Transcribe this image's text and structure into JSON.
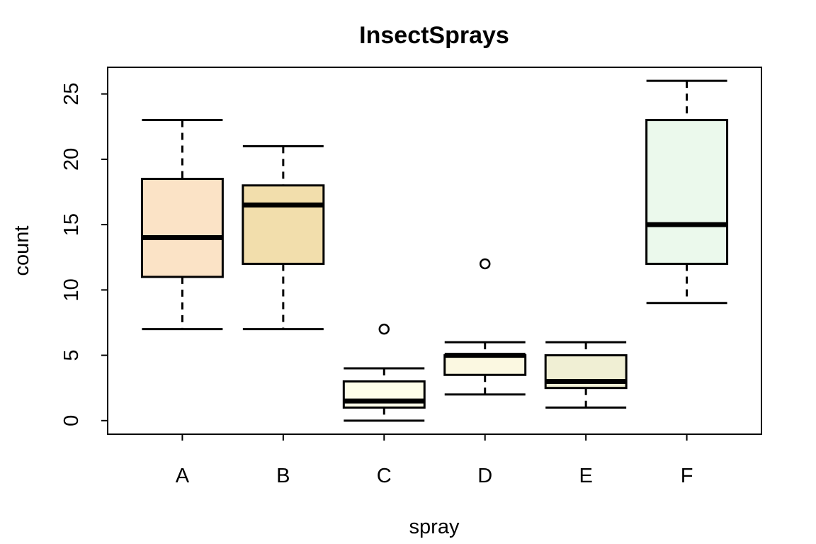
{
  "chart_data": {
    "type": "boxplot",
    "title": "InsectSprays",
    "xlabel": "spray",
    "ylabel": "count",
    "categories": [
      "A",
      "B",
      "C",
      "D",
      "E",
      "F"
    ],
    "ylim": [
      0,
      26
    ],
    "y_ticks": [
      0,
      5,
      10,
      15,
      20,
      25
    ],
    "grid": false,
    "legend": "none",
    "series": [
      {
        "name": "A",
        "whisker_low": 7,
        "q1": 11,
        "median": 14,
        "q3": 18.5,
        "whisker_high": 23,
        "outliers": [],
        "fill": "#FBE3C6"
      },
      {
        "name": "B",
        "whisker_low": 7,
        "q1": 12,
        "median": 16.5,
        "q3": 18,
        "whisker_high": 21,
        "outliers": [],
        "fill": "#F2DEAC"
      },
      {
        "name": "C",
        "whisker_low": 0,
        "q1": 1,
        "median": 1.5,
        "q3": 3,
        "whisker_high": 4,
        "outliers": [
          7
        ],
        "fill": "#FEFEE9"
      },
      {
        "name": "D",
        "whisker_low": 2,
        "q1": 3.5,
        "median": 5,
        "q3": 5,
        "whisker_high": 6,
        "outliers": [
          12
        ],
        "fill": "#FBF8E1"
      },
      {
        "name": "E",
        "whisker_low": 1,
        "q1": 2.5,
        "median": 3,
        "q3": 5,
        "whisker_high": 6,
        "outliers": [],
        "fill": "#F0EFD4"
      },
      {
        "name": "F",
        "whisker_low": 9,
        "q1": 12,
        "median": 15,
        "q3": 23,
        "whisker_high": 26,
        "outliers": [],
        "fill": "#EBF9EC"
      }
    ],
    "colors": {
      "stroke": "#000000",
      "background": "#FFFFFF",
      "text": "#000000"
    }
  }
}
